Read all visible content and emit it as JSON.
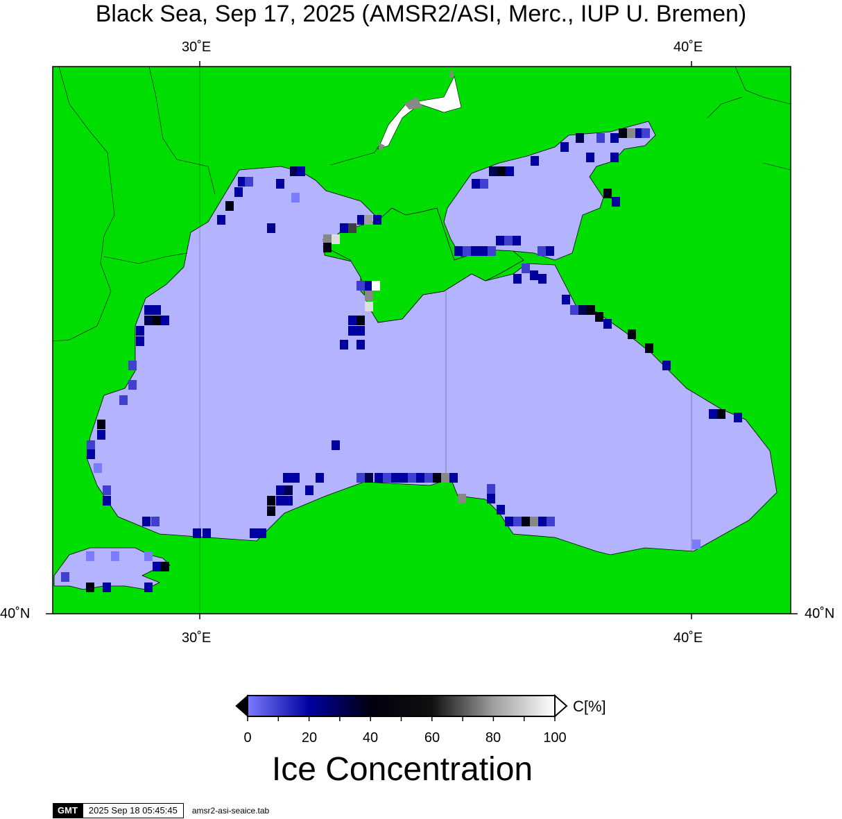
{
  "title": "Black Sea, Sep 17, 2025 (AMSR2/ASI, Merc., IUP U. Bremen)",
  "axes": {
    "top_ticks": [
      "30˚E",
      "40˚E"
    ],
    "bottom_ticks": [
      "30˚E",
      "40˚E"
    ],
    "left_ticks": [
      "40˚N"
    ],
    "right_ticks": [
      "40˚N"
    ]
  },
  "colors": {
    "land": "#00dd00",
    "sea_open": "#b3b3ff",
    "frame": "#000000"
  },
  "colorbar": {
    "title": "Ice Concentration",
    "unit": "C[%]",
    "labels": [
      "0",
      "20",
      "40",
      "60",
      "80",
      "100"
    ],
    "range": [
      0,
      100
    ]
  },
  "footer": {
    "logo": "GMT",
    "timestamp": "2025 Sep 18 05:45:45",
    "filename": "amsr2-asi-seaice.tab"
  },
  "chart_data": {
    "type": "heatmap",
    "variable": "Ice Concentration",
    "unit": "C[%]",
    "region": "Black Sea",
    "date": "Sep 17, 2025",
    "colorscale": [
      {
        "value": 0,
        "color": "#7b7bff"
      },
      {
        "value": 20,
        "color": "#0000a0"
      },
      {
        "value": 40,
        "color": "#000010"
      },
      {
        "value": 60,
        "color": "#101010"
      },
      {
        "value": 80,
        "color": "#9e9e9e"
      },
      {
        "value": 100,
        "color": "#ffffff"
      }
    ],
    "note_open_sea_value": 0
  }
}
